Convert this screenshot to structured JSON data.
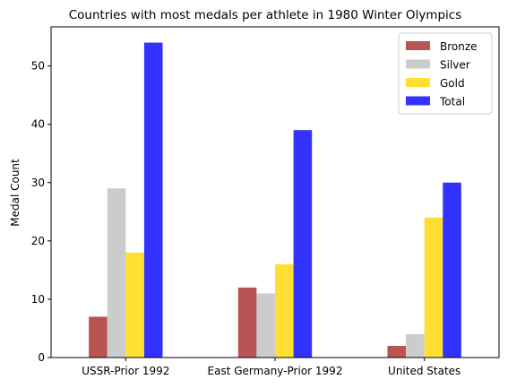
{
  "chart_data": {
    "type": "bar",
    "title": "Countries with most medals per athlete in 1980 Winter Olympics",
    "xlabel": "",
    "ylabel": "Medal Count",
    "categories": [
      "USSR-Prior 1992",
      "East Germany-Prior 1992",
      "United States"
    ],
    "series": [
      {
        "name": "Bronze",
        "values": [
          7,
          12,
          2
        ],
        "color": "#b85454"
      },
      {
        "name": "Silver",
        "values": [
          29,
          11,
          4
        ],
        "color": "#cccccc"
      },
      {
        "name": "Gold",
        "values": [
          18,
          16,
          24
        ],
        "color": "#ffdf33"
      },
      {
        "name": "Total",
        "values": [
          54,
          39,
          30
        ],
        "color": "#3333ff"
      }
    ],
    "ylim": [
      0,
      56.7
    ],
    "yticks": [
      0,
      10,
      20,
      30,
      40,
      50
    ],
    "grid": false,
    "legend_position": "top-right"
  }
}
